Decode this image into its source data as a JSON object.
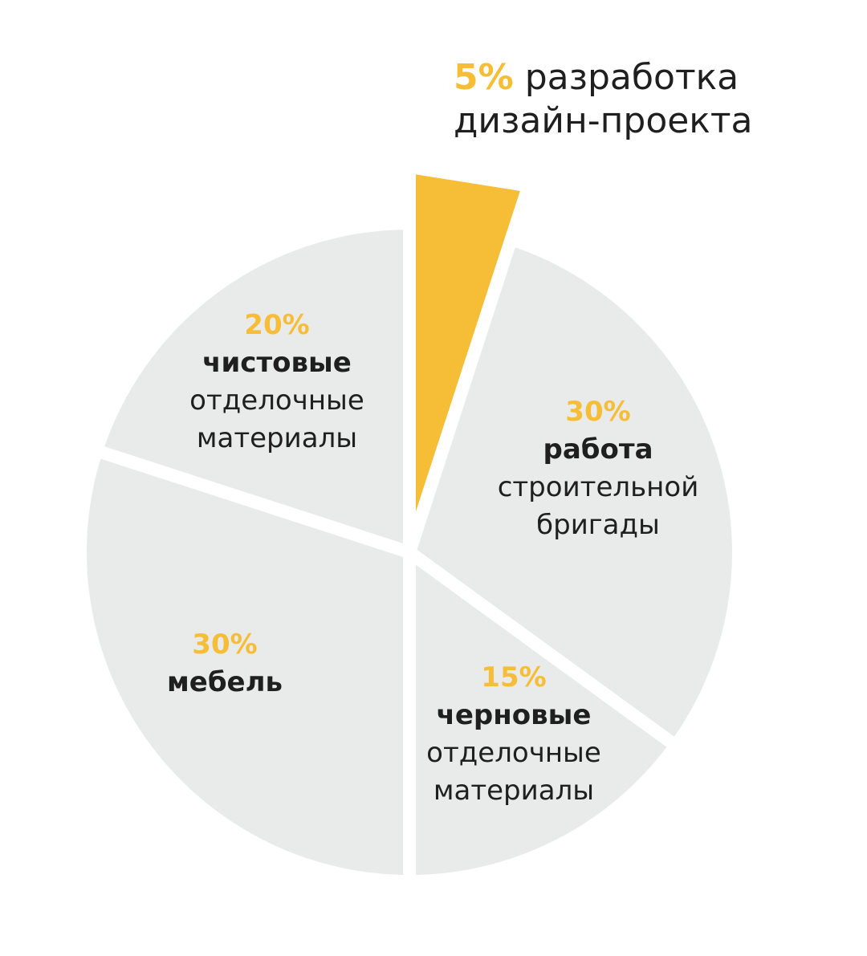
{
  "chart_data": {
    "type": "pie",
    "colors": {
      "highlight": "#f6bd36",
      "default": "#e9eaea",
      "text": "#1f1f1f"
    },
    "slices": [
      {
        "value": 5,
        "percent_label": "5%",
        "bold": "",
        "text": "разработка дизайн-проекта",
        "highlighted": true
      },
      {
        "value": 30,
        "percent_label": "30%",
        "bold": "работа",
        "text": "строительной бригады",
        "highlighted": false
      },
      {
        "value": 15,
        "percent_label": "15%",
        "bold": "черновые",
        "text": "отделочные материалы",
        "highlighted": false
      },
      {
        "value": 30,
        "percent_label": "30%",
        "bold": "мебель",
        "text": "",
        "highlighted": false
      },
      {
        "value": 20,
        "percent_label": "20%",
        "bold": "чистовые",
        "text": "отделочные материалы",
        "highlighted": false
      }
    ]
  },
  "labels": {
    "design": {
      "pct": "5%",
      "line1": "разработка",
      "line2": "дизайн-проекта"
    },
    "crew": {
      "pct": "30%",
      "bold": "работа",
      "line1": "строительной",
      "line2": "бригады"
    },
    "rough": {
      "pct": "15%",
      "bold": "черновые",
      "line1": "отделочные",
      "line2": "материалы"
    },
    "furniture": {
      "pct": "30%",
      "bold": "мебель"
    },
    "finish": {
      "pct": "20%",
      "bold": "чистовые",
      "line1": "отделочные",
      "line2": "материалы"
    }
  }
}
